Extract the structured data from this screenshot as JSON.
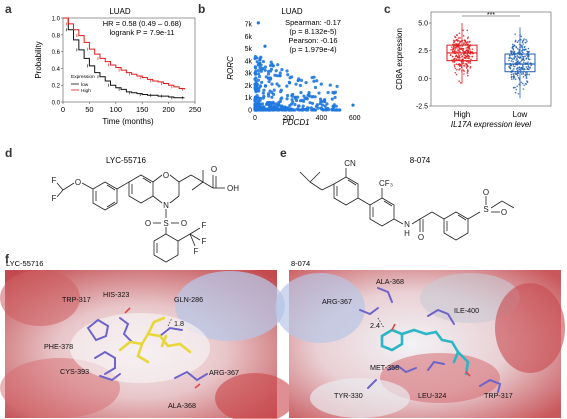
{
  "panel_labels": {
    "a": "a",
    "b": "b",
    "c": "c",
    "d": "d",
    "e": "e",
    "f": "f"
  },
  "colors": {
    "low": "#111111",
    "high": "#e31a1c",
    "scatter": "#1f78e0",
    "box_high": "#e31a1c",
    "box_low": "#1f5fb4",
    "ligand_left": "#e8d63a",
    "ligand_right": "#2ab6c4",
    "residue": "#7b6fd0"
  },
  "chart_data": [
    {
      "type": "line",
      "title": "LUAD",
      "xlabel": "Time (months)",
      "ylabel": "Probability",
      "xlim": [
        0,
        250
      ],
      "ylim": [
        0,
        1
      ],
      "xticks": [
        "0",
        "50",
        "100",
        "150",
        "200",
        "250"
      ],
      "yticks": [
        "0.0",
        "0.2",
        "0.4",
        "0.6",
        "0.8",
        "1.0"
      ],
      "annotations": [
        "HR = 0.58 (0.49 – 0.68)",
        "logrank P = 7.9e-11"
      ],
      "legend_title": "Expression",
      "legend_position": "bottom-left",
      "series": [
        {
          "name": "low",
          "color": "#111111",
          "x": [
            0,
            10,
            20,
            30,
            40,
            50,
            60,
            70,
            80,
            90,
            100,
            110,
            120,
            130,
            140,
            150,
            160,
            170,
            180,
            190,
            200,
            210,
            220,
            230
          ],
          "y": [
            1.0,
            0.86,
            0.74,
            0.62,
            0.52,
            0.43,
            0.35,
            0.3,
            0.25,
            0.2,
            0.17,
            0.15,
            0.12,
            0.11,
            0.1,
            0.09,
            0.08,
            0.08,
            0.07,
            0.07,
            0.06,
            0.05,
            0.05,
            0.05
          ]
        },
        {
          "name": "High",
          "color": "#e31a1c",
          "x": [
            0,
            10,
            20,
            30,
            40,
            50,
            60,
            70,
            80,
            90,
            100,
            110,
            120,
            130,
            140,
            150,
            160,
            170,
            180,
            190,
            200,
            210,
            220,
            230
          ],
          "y": [
            1.0,
            0.93,
            0.86,
            0.79,
            0.71,
            0.63,
            0.57,
            0.52,
            0.48,
            0.44,
            0.41,
            0.38,
            0.35,
            0.33,
            0.31,
            0.29,
            0.27,
            0.25,
            0.24,
            0.22,
            0.2,
            0.18,
            0.16,
            0.15
          ]
        }
      ]
    },
    {
      "type": "scatter",
      "title": "LUAD",
      "xlabel": "PDCD1",
      "ylabel": "RORC",
      "xlim": [
        0,
        650
      ],
      "ylim": [
        0,
        7500
      ],
      "xticks": [
        "0",
        "200",
        "400",
        "600"
      ],
      "yticks": [
        "0",
        "1k",
        "2k",
        "3k",
        "4k",
        "5k",
        "6k",
        "7k"
      ],
      "annotations": [
        "Spearman: -0.17",
        "(p = 8.132e-5)",
        "Pearson: -0.16",
        "(p = 1.979e-4)"
      ],
      "color": "#1f78e0"
    },
    {
      "type": "box",
      "title": "",
      "xlabel": "IL17A expression level",
      "ylabel": "CD8A expression",
      "categories": [
        "High",
        "Low"
      ],
      "ylim": [
        -2.5,
        6
      ],
      "yticks": [
        "-2.5",
        "0.0",
        "2.5",
        "5.0"
      ],
      "significance": "***",
      "boxes": [
        {
          "name": "High",
          "q1": 1.6,
          "median": 2.3,
          "q3": 3.0,
          "whisker_low": -0.5,
          "whisker_high": 5.0
        },
        {
          "name": "Low",
          "q1": 0.6,
          "median": 1.3,
          "q3": 2.2,
          "whisker_low": -1.8,
          "whisker_high": 4.6
        }
      ]
    }
  ],
  "panel_d": {
    "compound": "LYC-55716",
    "atoms": {
      "F1": "F",
      "F2": "F",
      "O1": "O",
      "N1": "N",
      "S1": "S",
      "O2": "O",
      "O3": "O",
      "O4": "O",
      "OH": "OH",
      "CF_F1": "F",
      "CF_F2": "F",
      "CF_F3": "F",
      "O_ring": "O"
    }
  },
  "panel_e": {
    "compound": "8-074",
    "atoms": {
      "CN": "CN",
      "CF3": "CF₃",
      "N": "N",
      "H": "H",
      "O": "O",
      "S": "S",
      "O1": "O",
      "O2": "O"
    }
  },
  "panel_f": {
    "left_title": "LYC-55716",
    "right_title": "8-074",
    "left_residues": [
      "TRP-317",
      "HIS-323",
      "GLN-286",
      "PHE-378",
      "CYS-393",
      "ARG-367",
      "ALA-368"
    ],
    "left_distance": "1.8",
    "right_residues": [
      "ARG-367",
      "ALA-368",
      "ILE-400",
      "MET-358",
      "TYR-330",
      "LEU-324",
      "TRP-317"
    ],
    "right_distance": "2.4"
  }
}
